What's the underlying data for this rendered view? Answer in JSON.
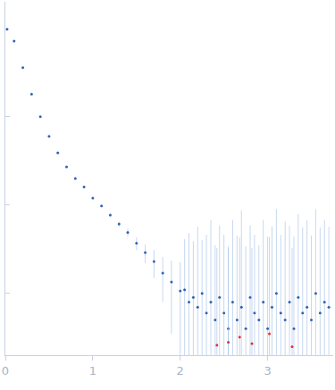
{
  "chart_data": {
    "type": "scatter",
    "log": "y",
    "grid": false,
    "tick_labels": "x",
    "xlim": [
      0,
      3.75
    ],
    "xticks": [
      0,
      1,
      2,
      3
    ],
    "ylim": [
      0.0002,
      2
    ],
    "yticks": [
      0.1,
      0.01,
      0.001
    ],
    "series": [
      {
        "color": "#2f62b5",
        "marker": "circle",
        "x": [
          0.02,
          0.1,
          0.2,
          0.3,
          0.4,
          0.5,
          0.6,
          0.7,
          0.8,
          0.9,
          1.0,
          1.1,
          1.2,
          1.3,
          1.4,
          1.5,
          1.6,
          1.7,
          1.8,
          1.9,
          2.0,
          2.05,
          2.1,
          2.15,
          2.2,
          2.25,
          2.3,
          2.35,
          2.4,
          2.45,
          2.5,
          2.55,
          2.6,
          2.65,
          2.7,
          2.75,
          2.8,
          2.85,
          2.9,
          2.95,
          3.0,
          3.05,
          3.1,
          3.15,
          3.2,
          3.25,
          3.3,
          3.35,
          3.4,
          3.45,
          3.5,
          3.55,
          3.6,
          3.65,
          3.7
        ],
        "values": [
          0.98,
          0.72,
          0.36,
          0.18,
          0.1,
          0.06,
          0.039,
          0.027,
          0.02,
          0.016,
          0.012,
          0.0098,
          0.0077,
          0.0061,
          0.0049,
          0.0037,
          0.0029,
          0.0023,
          0.0017,
          0.00135,
          0.00107,
          0.0011,
          0.0008,
          0.0009,
          0.0007,
          0.001,
          0.0006,
          0.0008,
          0.0005,
          0.0009,
          0.0006,
          0.0004,
          0.0008,
          0.0005,
          0.0007,
          0.0004,
          0.0009,
          0.0006,
          0.0005,
          0.0008,
          0.0004,
          0.0007,
          0.001,
          0.0006,
          0.0005,
          0.0008,
          0.0004,
          0.0009,
          0.0006,
          0.0007,
          0.0005,
          0.001,
          0.0006,
          0.0008,
          0.0007
        ],
        "errors": [
          0.004,
          0.002,
          0.001,
          0.0005,
          0.0003,
          0.0002,
          0.00015,
          0.00012,
          0.0001,
          0.0001,
          0.0001,
          0.0002,
          0.0003,
          0.0004,
          0.0005,
          0.0006,
          0.0007,
          0.0008,
          0.0009,
          0.001,
          0.0012,
          0.003,
          0.004,
          0.003,
          0.005,
          0.003,
          0.004,
          0.006,
          0.003,
          0.005,
          0.004,
          0.003,
          0.006,
          0.004,
          0.008,
          0.003,
          0.005,
          0.004,
          0.003,
          0.006,
          0.004,
          0.005,
          0.008,
          0.004,
          0.006,
          0.005,
          0.004,
          0.007,
          0.005,
          0.006,
          0.004,
          0.008,
          0.005,
          0.006,
          0.005
        ]
      },
      {
        "color": "#e03030",
        "marker": "circle",
        "x": [
          2.42,
          2.55,
          2.68,
          2.82,
          3.02,
          3.28
        ],
        "values": [
          0.00026,
          0.00028,
          0.00032,
          0.00027,
          0.00035,
          0.00025
        ],
        "errors": [
          0.003,
          0.003,
          0.004,
          0.003,
          0.004,
          0.003
        ]
      }
    ]
  }
}
